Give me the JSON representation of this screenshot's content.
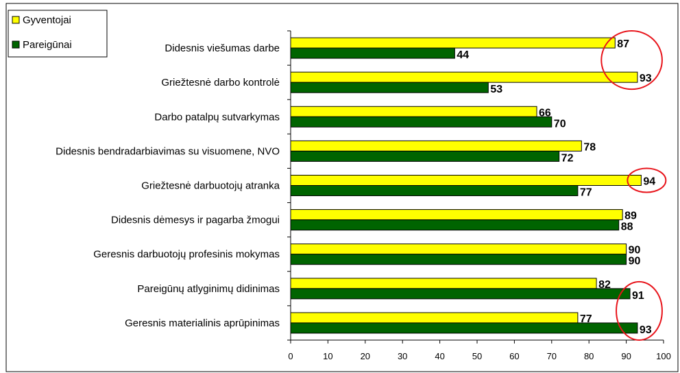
{
  "chart_data": {
    "type": "bar",
    "orientation": "horizontal",
    "categories": [
      "Didesnis viešumas darbe",
      "Griežtesnė darbo kontrolė",
      "Darbo patalpų sutvarkymas",
      "Didesnis bendradarbiavimas su visuomene, NVO",
      "Griežtesnė darbuotojų atranka",
      "Didesnis dėmesys ir pagarba žmogui",
      "Geresnis darbuotojų profesinis mokymas",
      "Pareigūnų atlyginimų didinimas",
      "Geresnis materialinis aprūpinimas"
    ],
    "series": [
      {
        "name": "Gyventojai",
        "color": "#ffff00",
        "values": [
          87,
          93,
          66,
          78,
          94,
          89,
          90,
          82,
          77
        ]
      },
      {
        "name": "Pareigūnai",
        "color": "#006400",
        "values": [
          44,
          53,
          70,
          72,
          77,
          88,
          90,
          91,
          93
        ]
      }
    ],
    "xlim": [
      0,
      100
    ],
    "xticks": [
      "0",
      "10",
      "20",
      "30",
      "40",
      "50",
      "60",
      "70",
      "80",
      "90",
      "100"
    ],
    "legend_position": "top-left",
    "grid": false,
    "highlight_color": "#e8141b",
    "highlights": [
      {
        "categories": [
          0,
          1
        ],
        "series": "Gyventojai"
      },
      {
        "categories": [
          4
        ],
        "series": "Gyventojai"
      },
      {
        "categories": [
          7,
          8
        ],
        "series": "Pareigūnai"
      }
    ]
  }
}
